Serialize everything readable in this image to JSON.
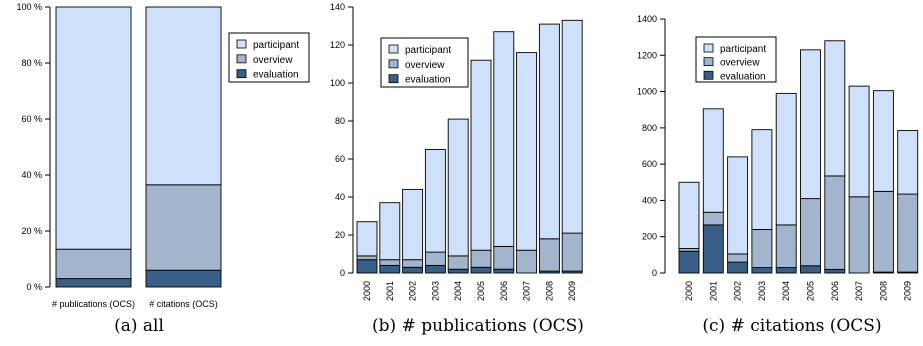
{
  "colors": {
    "participant": "#cfe0fa",
    "overview": "#a2b5cc",
    "evaluation": "#3a5f86"
  },
  "chart_data": [
    {
      "type": "bar",
      "stacked": true,
      "caption": "(a) all",
      "categories": [
        "# publications (OCS)",
        "# citations (OCS)"
      ],
      "series": [
        {
          "name": "evaluation",
          "values": [
            3,
            6
          ]
        },
        {
          "name": "overview",
          "values": [
            10.5,
            30.5
          ]
        },
        {
          "name": "participant",
          "values": [
            86.5,
            63.5
          ]
        }
      ],
      "ylim": [
        0,
        100
      ],
      "yticks": [
        0,
        20,
        40,
        60,
        80,
        100
      ],
      "ytick_labels": [
        "0 %",
        "20 %",
        "40 %",
        "60 %",
        "80 %",
        "100 %"
      ],
      "legend": {
        "placement": "top-right",
        "entries": [
          "participant",
          "overview",
          "evaluation"
        ]
      }
    },
    {
      "type": "bar",
      "stacked": true,
      "caption": "(b) # publications (OCS)",
      "categories": [
        "2000",
        "2001",
        "2002",
        "2003",
        "2004",
        "2005",
        "2006",
        "2007",
        "2008",
        "2009"
      ],
      "series": [
        {
          "name": "evaluation",
          "values": [
            7,
            4,
            3,
            4,
            2,
            3,
            2,
            0,
            1,
            1
          ]
        },
        {
          "name": "overview",
          "values": [
            2,
            3,
            4,
            7,
            7,
            9,
            12,
            12,
            17,
            20
          ]
        },
        {
          "name": "participant",
          "values": [
            18,
            30,
            37,
            54,
            72,
            100,
            113,
            104,
            113,
            112
          ]
        }
      ],
      "ylim": [
        0,
        140
      ],
      "yticks": [
        0,
        20,
        40,
        60,
        80,
        100,
        120,
        140
      ],
      "ytick_labels": [
        "0",
        "20",
        "40",
        "60",
        "80",
        "100",
        "120",
        "140"
      ],
      "legend": {
        "placement": "top-left",
        "entries": [
          "participant",
          "overview",
          "evaluation"
        ]
      }
    },
    {
      "type": "bar",
      "stacked": true,
      "caption": "(c) # citations (OCS)",
      "categories": [
        "2000",
        "2001",
        "2002",
        "2003",
        "2004",
        "2005",
        "2006",
        "2007",
        "2008",
        "2009"
      ],
      "series": [
        {
          "name": "evaluation",
          "values": [
            120,
            265,
            60,
            30,
            30,
            40,
            20,
            0,
            5,
            5
          ]
        },
        {
          "name": "overview",
          "values": [
            15,
            70,
            45,
            210,
            235,
            370,
            515,
            420,
            445,
            430
          ]
        },
        {
          "name": "participant",
          "values": [
            365,
            570,
            535,
            550,
            725,
            820,
            745,
            610,
            555,
            350
          ]
        }
      ],
      "ylim": [
        0,
        1400
      ],
      "yticks": [
        0,
        200,
        400,
        600,
        800,
        1000,
        1200,
        1400
      ],
      "ytick_labels": [
        "0",
        "200",
        "400",
        "600",
        "800",
        "1000",
        "1200",
        "1400"
      ],
      "legend": {
        "placement": "top-left",
        "entries": [
          "participant",
          "overview",
          "evaluation"
        ]
      }
    }
  ]
}
